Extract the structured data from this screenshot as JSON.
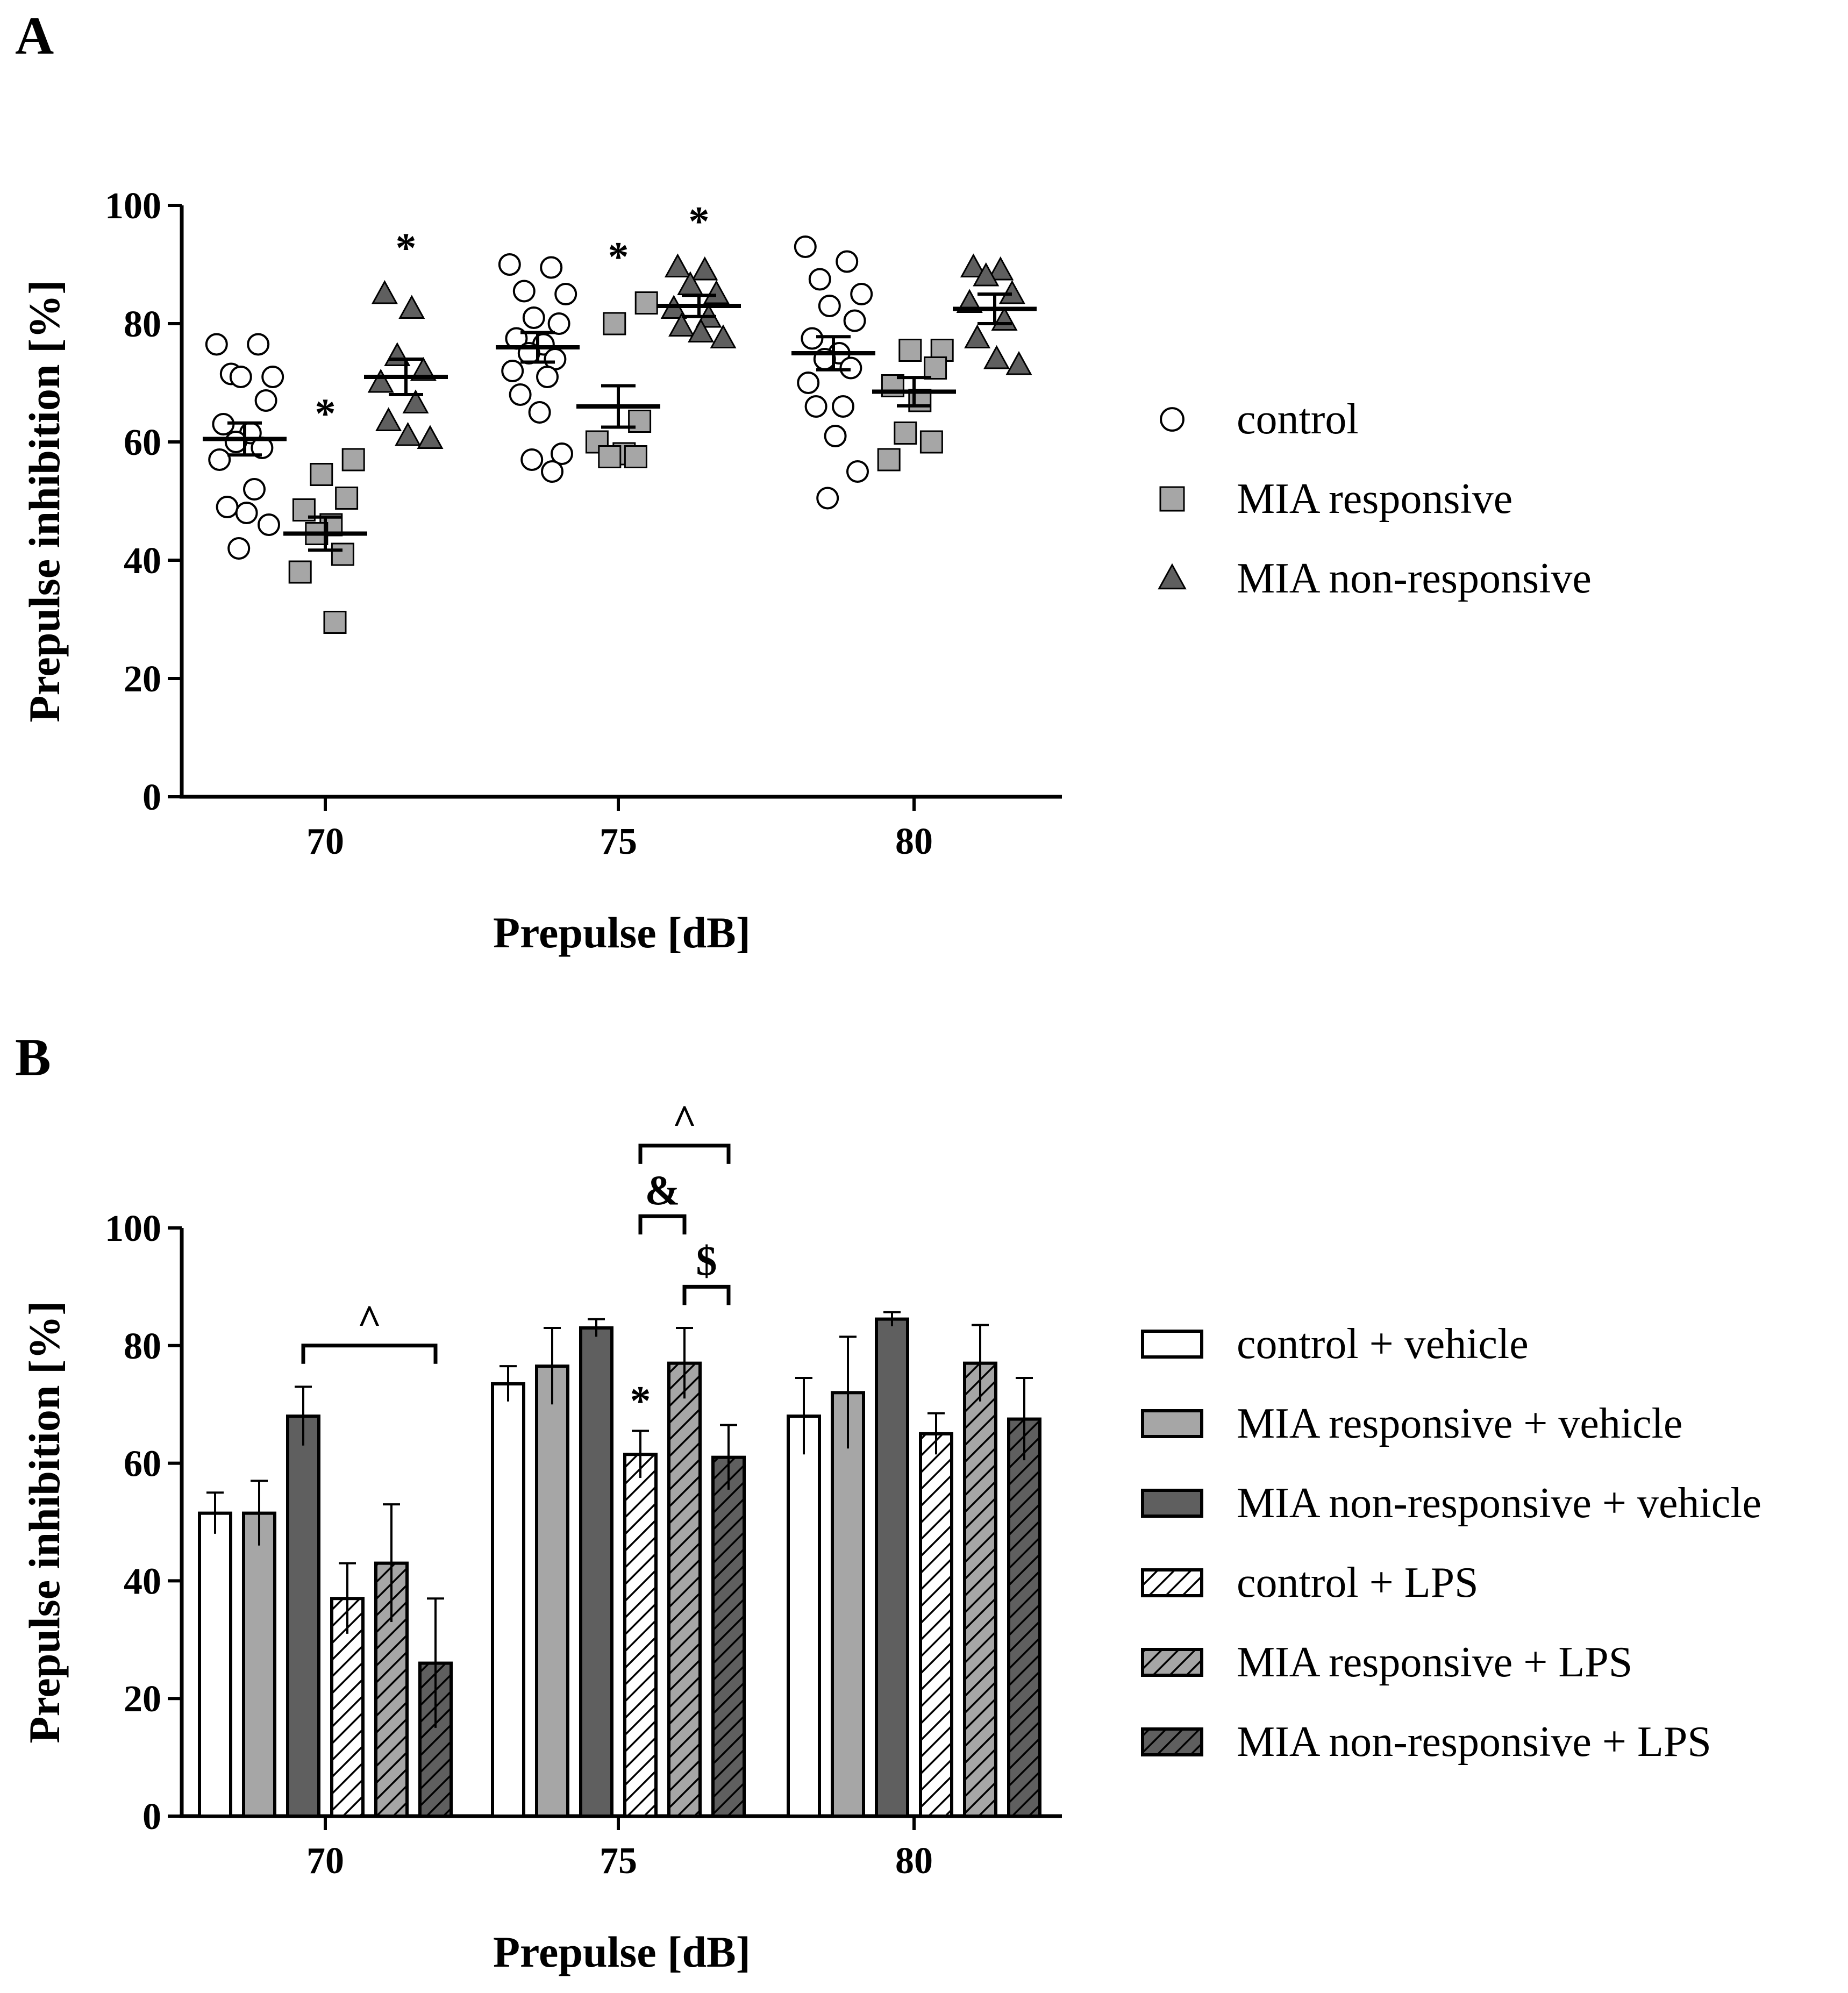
{
  "colors": {
    "control": "#ffffff",
    "mia_responsive": "#a6a6a6",
    "mia_nonresponsive": "#5f5f5f",
    "stroke": "#000000"
  },
  "chart_data": [
    {
      "panel": "A",
      "type": "scatter",
      "xlabel": "Prepulse [dB]",
      "ylabel": "Prepulse inhibition [%]",
      "ylim": [
        0,
        100
      ],
      "yticks": [
        "0",
        "20",
        "40",
        "60",
        "80",
        "100"
      ],
      "categories": [
        "70",
        "75",
        "80"
      ],
      "legend_position": "right",
      "series": [
        {
          "name": "control",
          "marker": "circle",
          "color": "#ffffff",
          "mean": [
            60.5,
            76.0,
            75.0
          ],
          "sem": [
            2.7,
            2.5,
            2.8
          ],
          "points": [
            [
              76.5,
              76.5,
              71.5,
              71,
              71,
              67,
              63,
              61.5,
              60,
              59,
              57,
              52,
              49,
              48,
              46,
              42
            ],
            [
              90,
              89.5,
              85.5,
              85,
              81,
              80,
              77.5,
              76.5,
              75,
              74,
              72,
              71,
              68,
              65,
              58,
              57,
              55
            ],
            [
              93,
              90.5,
              87.5,
              85,
              83,
              80.5,
              77.5,
              75,
              74,
              72.5,
              70,
              66,
              66,
              61,
              55,
              50.5
            ]
          ]
        },
        {
          "name": "MIA responsive",
          "marker": "square",
          "color": "#a6a6a6",
          "mean": [
            44.5,
            66.0,
            68.5
          ],
          "sem": [
            2.8,
            3.5,
            2.4
          ],
          "points": [
            [
              57,
              54.5,
              50.5,
              48.5,
              46,
              44.5,
              41,
              38,
              29.5
            ],
            [
              83.5,
              80,
              63.5,
              60,
              58,
              57.5,
              57.5
            ],
            [
              75.5,
              75.5,
              72.5,
              69.5,
              67,
              61.5,
              60,
              57
            ]
          ]
        },
        {
          "name": "MIA non-responsive",
          "marker": "triangle",
          "color": "#5f5f5f",
          "mean": [
            71.0,
            83.0,
            82.5
          ],
          "sem": [
            3.0,
            1.8,
            2.5
          ],
          "points": [
            [
              85,
              82.5,
              74.5,
              72,
              70,
              66.5,
              63.5,
              61,
              60.5
            ],
            [
              89.5,
              89,
              86.5,
              85,
              82.5,
              81,
              79.5,
              78.5,
              77.5
            ],
            [
              89.5,
              89,
              88,
              85,
              83.5,
              80.5,
              77.5,
              74,
              73
            ]
          ]
        }
      ],
      "annotations": [
        {
          "text": "*",
          "category": "70",
          "series": "MIA responsive"
        },
        {
          "text": "*",
          "category": "70",
          "series": "MIA non-responsive"
        },
        {
          "text": "*",
          "category": "75",
          "series": "MIA responsive"
        },
        {
          "text": "*",
          "category": "75",
          "series": "MIA non-responsive"
        }
      ]
    },
    {
      "panel": "B",
      "type": "bar",
      "xlabel": "Prepulse [dB]",
      "ylabel": "Prepulse inhibition [%]",
      "ylim": [
        0,
        100
      ],
      "yticks": [
        "0",
        "20",
        "40",
        "60",
        "80",
        "100"
      ],
      "categories": [
        "70",
        "75",
        "80"
      ],
      "legend_position": "right",
      "series": [
        {
          "name": "control + vehicle",
          "color": "#ffffff",
          "hatched": false,
          "values": [
            51.5,
            73.5,
            68.0
          ],
          "errors": [
            3.5,
            3.0,
            6.5
          ]
        },
        {
          "name": "MIA responsive + vehicle",
          "color": "#a6a6a6",
          "hatched": false,
          "values": [
            51.5,
            76.5,
            72.0
          ],
          "errors": [
            5.5,
            6.5,
            9.5
          ]
        },
        {
          "name": "MIA non-responsive + vehicle",
          "color": "#5f5f5f",
          "hatched": false,
          "values": [
            68.0,
            83.0,
            84.5
          ],
          "errors": [
            5.0,
            1.5,
            1.2
          ]
        },
        {
          "name": "control + LPS",
          "color": "#ffffff",
          "hatched": true,
          "values": [
            37.0,
            61.5,
            65.0
          ],
          "errors": [
            6.0,
            4.0,
            3.5
          ]
        },
        {
          "name": "MIA responsive + LPS",
          "color": "#a6a6a6",
          "hatched": true,
          "values": [
            43.0,
            77.0,
            77.0
          ],
          "errors": [
            10.0,
            6.0,
            6.5
          ]
        },
        {
          "name": "MIA non-responsive + LPS",
          "color": "#5f5f5f",
          "hatched": true,
          "values": [
            26.0,
            61.0,
            67.5
          ],
          "errors": [
            11.0,
            5.5,
            7.0
          ]
        }
      ],
      "annotations": [
        {
          "text": "^",
          "category": "70",
          "from_series": "MIA non-responsive + vehicle",
          "to_series": "MIA non-responsive + LPS",
          "y": 80
        },
        {
          "text": "^",
          "category": "75",
          "from_series": "control + LPS",
          "to_series": "MIA non-responsive + LPS",
          "y": 114
        },
        {
          "text": "&",
          "category": "75",
          "from_series": "control + LPS",
          "to_series": "MIA responsive + LPS",
          "y": 102
        },
        {
          "text": "$",
          "category": "75",
          "from_series": "MIA responsive + LPS",
          "to_series": "MIA non-responsive + LPS",
          "y": 90
        },
        {
          "text": "*",
          "category": "75",
          "series": "control + LPS"
        }
      ]
    }
  ],
  "panels": {
    "a_label": "A",
    "b_label": "B"
  }
}
